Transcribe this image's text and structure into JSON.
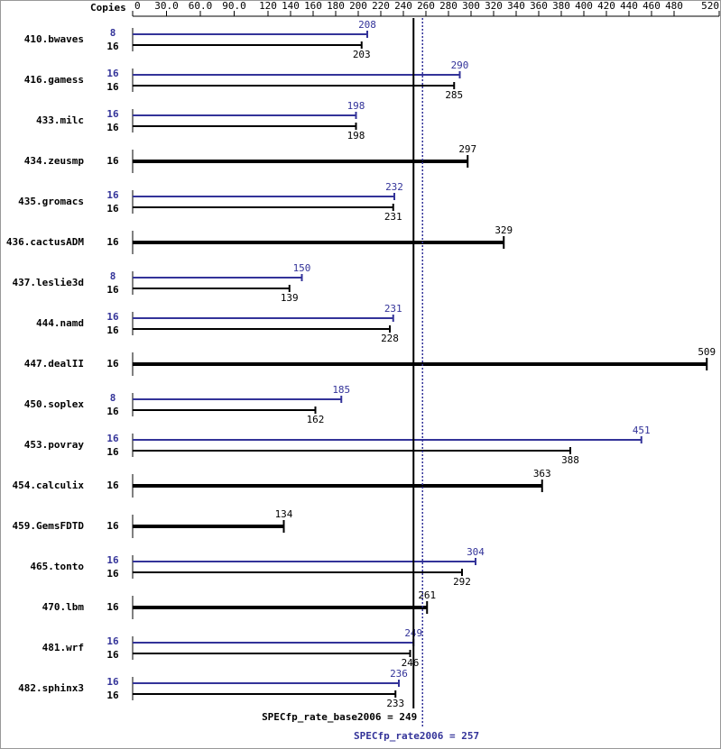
{
  "chart_data": {
    "type": "spec-bar",
    "copies_header": "Copies",
    "categories": [
      "410.bwaves",
      "416.gamess",
      "433.milc",
      "434.zeusmp",
      "435.gromacs",
      "436.cactusADM",
      "437.leslie3d",
      "444.namd",
      "447.dealII",
      "450.soplex",
      "453.povray",
      "454.calculix",
      "459.GemsFDTD",
      "465.tonto",
      "470.lbm",
      "481.wrf",
      "482.sphinx3"
    ],
    "series": [
      {
        "color": "#000000",
        "copies": [
          16,
          16,
          16,
          16,
          16,
          16,
          16,
          16,
          16,
          16,
          16,
          16,
          16,
          16,
          16,
          16,
          16
        ],
        "values": [
          203,
          285,
          198,
          297,
          231,
          329,
          139,
          228,
          509,
          162,
          388,
          363,
          134,
          292,
          261,
          246,
          233
        ]
      },
      {
        "color": "#333399",
        "copies": [
          8,
          16,
          16,
          null,
          16,
          null,
          8,
          16,
          null,
          8,
          16,
          null,
          null,
          16,
          null,
          16,
          16
        ],
        "values": [
          208,
          290,
          198,
          null,
          232,
          null,
          150,
          231,
          null,
          185,
          451,
          null,
          null,
          304,
          null,
          249,
          236
        ]
      }
    ],
    "xlim": [
      0,
      520
    ],
    "xticks": [
      0,
      {
        "value": 30,
        "label": "30.0"
      },
      {
        "value": 60,
        "label": "60.0"
      },
      {
        "value": 90,
        "label": "90.0"
      },
      120,
      140,
      160,
      180,
      200,
      220,
      240,
      260,
      280,
      300,
      320,
      340,
      360,
      380,
      400,
      420,
      440,
      460,
      480,
      520
    ],
    "reference_lines": [
      {
        "value": 249,
        "label": "SPECfp_rate_base2006 = 249",
        "color": "#000000",
        "style": "solid"
      },
      {
        "value": 257,
        "label": "SPECfp_rate2006 = 257",
        "color": "#333399",
        "style": "dotted"
      }
    ]
  }
}
